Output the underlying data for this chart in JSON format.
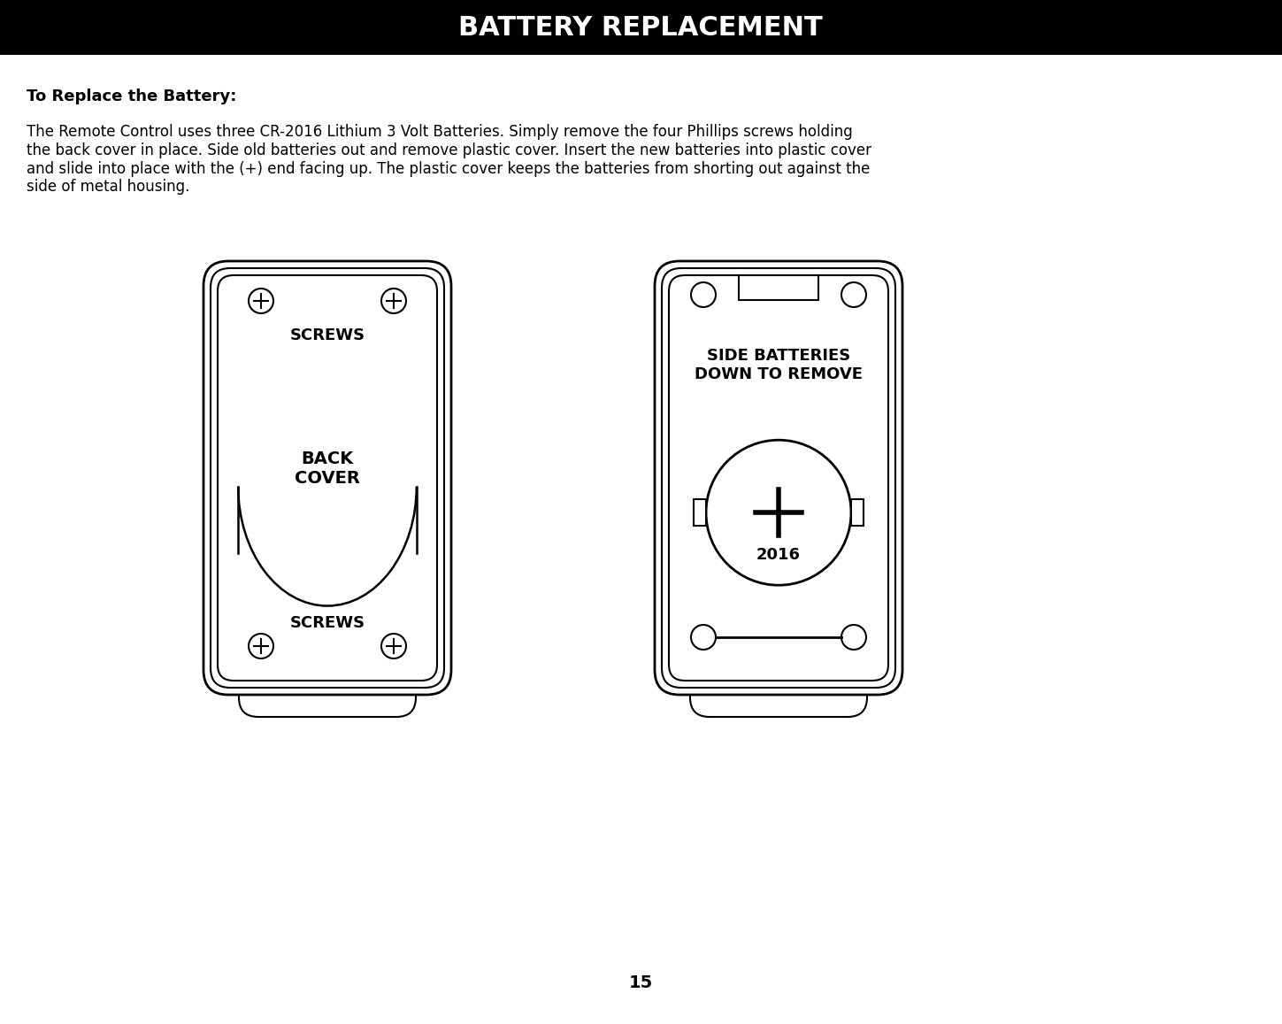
{
  "title": "BATTERY REPLACEMENT",
  "title_bg": "#000000",
  "title_color": "#ffffff",
  "subtitle": "To Replace the Battery:",
  "body_text": "The Remote Control uses three CR-2016 Lithium 3 Volt Batteries. Simply remove the four Phillips screws holding\nthe back cover in place. Side old batteries out and remove plastic cover. Insert the new batteries into plastic cover\nand slide into place with the (+) end facing up. The plastic cover keeps the batteries from shorting out against the\nside of metal housing.",
  "page_number": "15",
  "bg_color": "#ffffff",
  "text_color": "#000000"
}
